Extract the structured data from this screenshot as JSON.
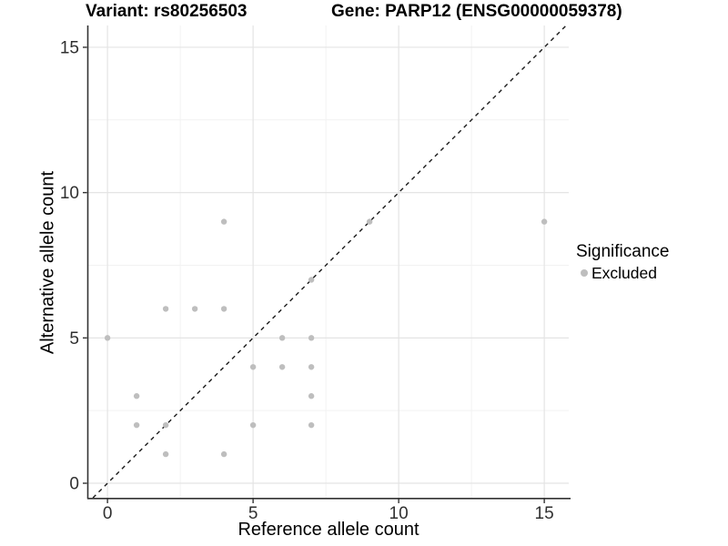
{
  "titles": {
    "left": "Variant: rs80256503",
    "right": "Gene: PARP12 (ENSG00000059378)"
  },
  "legend": {
    "title": "Significance",
    "items": [
      {
        "label": "Excluded",
        "color": "#bebebe"
      }
    ],
    "position": "right"
  },
  "chart_data": {
    "type": "scatter",
    "title": "Variant: rs80256503  /  Gene: PARP12 (ENSG00000059378)",
    "xlabel": "Reference allele count",
    "ylabel": "Alternative allele count",
    "xlim": [
      -0.66,
      15.84
    ],
    "ylim": [
      -0.5,
      15.75
    ],
    "x_ticks": [
      0,
      5,
      10,
      15
    ],
    "y_ticks": [
      0,
      5,
      10,
      15
    ],
    "x_minor_ticks": [
      2.5,
      7.5,
      12.5
    ],
    "y_minor_ticks": [
      2.5,
      7.5,
      12.5
    ],
    "grid": "major+minor",
    "legend_position": "right",
    "identity_line": {
      "type": "abline",
      "slope": 1,
      "intercept": 0,
      "style": "dashed",
      "color": "#1a1a1a"
    },
    "series": [
      {
        "name": "Excluded",
        "color": "#bebebe",
        "marker": "circle",
        "points": [
          [
            0,
            5
          ],
          [
            1,
            2
          ],
          [
            1,
            3
          ],
          [
            2,
            1
          ],
          [
            2,
            2
          ],
          [
            2,
            6
          ],
          [
            3,
            6
          ],
          [
            4,
            1
          ],
          [
            4,
            6
          ],
          [
            4,
            9
          ],
          [
            5,
            2
          ],
          [
            5,
            4
          ],
          [
            6,
            4
          ],
          [
            6,
            5
          ],
          [
            7,
            2
          ],
          [
            7,
            3
          ],
          [
            7,
            4
          ],
          [
            7,
            5
          ],
          [
            7,
            7
          ],
          [
            9,
            9
          ],
          [
            15,
            9
          ]
        ]
      }
    ],
    "colors": {
      "point": "#bebebe",
      "grid_major": "#e4e4e4",
      "grid_minor": "#f2f2f2",
      "axis_line": "#333333",
      "tick_label": "#303030",
      "background": "#ffffff"
    }
  }
}
